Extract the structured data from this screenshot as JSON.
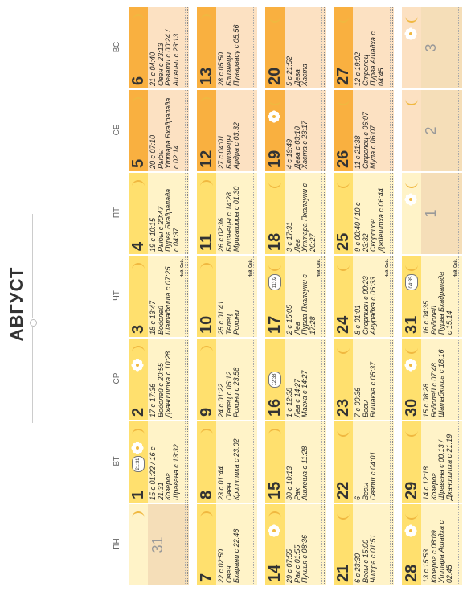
{
  "title": "АВГУСТ",
  "weekdays": [
    "ПН",
    "ВТ",
    "СР",
    "ЧТ",
    "ПТ",
    "СБ",
    "ВС"
  ],
  "colors": {
    "yellow": "#FFE06E",
    "pale": "#FFF3C8",
    "orange": "#F9B040",
    "peach": "#FCE1C2",
    "sand": "#F5DEB8",
    "moon": "#F0B840"
  },
  "weeks": [
    [
      {
        "num": "",
        "grey": "31",
        "band": "pale",
        "bg": "sand",
        "moon": "right"
      },
      {
        "num": "1",
        "band": "yellow",
        "bg": "pale",
        "moon": "right",
        "badge": "21:31",
        "icon": "sun",
        "info": "15 с 01:22 / 16 с\n21:31\nКозерог\nШравана с 13:32"
      },
      {
        "num": "2",
        "band": "yellow",
        "bg": "pale",
        "moon": "right",
        "icon": "sun",
        "info": "17 с 17:36\nВодолей с 20:55\nДхаништха с 10:28"
      },
      {
        "num": "3",
        "band": "yellow",
        "bg": "pale",
        "moon": "right",
        "mark": "Ньй.    Сей.",
        "info": "18 с 13:47\nВодолей\nШатабхиша с 07:25"
      },
      {
        "num": "4",
        "band": "yellow",
        "bg": "pale",
        "moon": "right",
        "info": "19 с 10:15\nРыбы с 20:47\nПурва Бхадрапада\nс 04:37"
      },
      {
        "num": "5",
        "band": "orange",
        "bg": "peach",
        "moon": "right",
        "info": "20 с 07:10\nРыбы\nУттара Бхадрапада\nс 02:14"
      },
      {
        "num": "6",
        "band": "orange",
        "bg": "peach",
        "moon": "right",
        "info": "21 с 04:40\nОвен с 23:13\nРевати с 00:24 /\nАшвини с 23:13"
      }
    ],
    [
      {
        "num": "7",
        "band": "yellow",
        "bg": "pale",
        "moon": "right",
        "info": "22 с 02:50\nОвен\nБхарани с 22:46"
      },
      {
        "num": "8",
        "band": "yellow",
        "bg": "pale",
        "moon": "right",
        "info": "23 с 01:44\nОвен\nКриттика с 23:02"
      },
      {
        "num": "9",
        "band": "yellow",
        "bg": "pale",
        "moon": "right",
        "info": "24 с 01:22\nТелец с 05:12\nРохини с 23:58"
      },
      {
        "num": "10",
        "band": "yellow",
        "bg": "pale",
        "moon": "right",
        "mark": "Ньй.    Сей.",
        "info": "25 с 01:41\nТелец\nРохини"
      },
      {
        "num": "11",
        "band": "yellow",
        "bg": "pale",
        "moon": "right",
        "info": "26 с 02:36\nБлизнецы с 14:28\nМригашира с 01:30"
      },
      {
        "num": "12",
        "band": "orange",
        "bg": "peach",
        "moon": "right",
        "info": "27 с 04:01\nБлизнецы\nАрдра с 03:32"
      },
      {
        "num": "13",
        "band": "orange",
        "bg": "peach",
        "moon": "right",
        "info": "28 с 05:50\nБлизнецы\nПунарвасу с 05:56"
      }
    ],
    [
      {
        "num": "14",
        "band": "yellow",
        "bg": "pale",
        "moon": "right",
        "icon": "sun",
        "info": "29 с 07:55\nРак с 01:55\nПушья с 08:36"
      },
      {
        "num": "15",
        "band": "yellow",
        "bg": "pale",
        "moon": "right",
        "info": "30 с 10:13\nРак\nАшлеша с 11:28"
      },
      {
        "num": "16",
        "band": "yellow",
        "bg": "pale",
        "moon": "none",
        "badge": "12:38",
        "info": "1 с 12:38\nЛев с 14:27\nМагха с 14:27"
      },
      {
        "num": "17",
        "band": "yellow",
        "bg": "pale",
        "moon": "left",
        "badge": "11:02",
        "mark": "Ньй.    Сей.",
        "info": "2 с 15:05\nЛев\nПурва Пхалгуни с\n17:28"
      },
      {
        "num": "18",
        "band": "yellow",
        "bg": "pale",
        "moon": "left",
        "info": "3 с 17:31\nЛев\nУттара Пхалгуни с\n20:27"
      },
      {
        "num": "19",
        "band": "orange",
        "bg": "peach",
        "moon": "left",
        "icon": "sun",
        "info": "4 с 19:49\nДева с 03:10\nХаста с 23:17"
      },
      {
        "num": "20",
        "band": "orange",
        "bg": "peach",
        "moon": "left",
        "info": "5 с 21:52\nДева\nХаста"
      }
    ],
    [
      {
        "num": "21",
        "band": "yellow",
        "bg": "pale",
        "moon": "left",
        "info": "6 с 23:30\nВесы с 15:00\nЧитра с 01:51"
      },
      {
        "num": "22",
        "band": "yellow",
        "bg": "pale",
        "moon": "left",
        "info": "6\nВесы\nСвати с 04:01"
      },
      {
        "num": "23",
        "band": "yellow",
        "bg": "pale",
        "moon": "left",
        "info": "7 с 00:36\nВесы\nВишакха с 05:37"
      },
      {
        "num": "24",
        "band": "yellow",
        "bg": "pale",
        "moon": "left",
        "mark": "Ньй.    Сей.",
        "info": "8 с 01:01\nСкорпион с 00:23\nАнурадха с 06:33"
      },
      {
        "num": "25",
        "band": "yellow",
        "bg": "pale",
        "moon": "left",
        "info": "9 с 00:40 / 10 с\n23:32\nСкорпион\nДжйештха с 06:44"
      },
      {
        "num": "26",
        "band": "orange",
        "bg": "peach",
        "moon": "left",
        "info": "11 с 21:38\nСтрелец с 06:07\nМула с 06:07"
      },
      {
        "num": "27",
        "band": "orange",
        "bg": "peach",
        "moon": "left",
        "info": "12 с 19:02\nСтрелец\nПурва Ашадха с\n04:45"
      }
    ],
    [
      {
        "num": "28",
        "band": "yellow",
        "bg": "pale",
        "moon": "left",
        "icon": "sun",
        "info": "13 с 15:53\nКозерог с 08:09\nУттара Ашадха с\n02:45"
      },
      {
        "num": "29",
        "band": "yellow",
        "bg": "pale",
        "moon": "left",
        "info": "14 с 12:18\nКозерог\nШравана с 00:13 /\nДхаништха с 21:19"
      },
      {
        "num": "30",
        "band": "yellow",
        "bg": "pale",
        "moon": "left",
        "icon": "sun",
        "info": "15 с 08:28\nВодолей с 07:48\nШатабхиша с 18:16"
      },
      {
        "num": "31",
        "band": "yellow",
        "bg": "pale",
        "moon": "left",
        "badge": "04:35",
        "mark": "Ньй.    Сей.",
        "info": "16 с 04:35\nВодолей\nПурва Бхадрапада\nс 15:14"
      },
      {
        "num": "",
        "grey": "1",
        "band": "pale",
        "bg": "sand",
        "moon": "left",
        "icon": "sun"
      },
      {
        "num": "",
        "grey": "2",
        "band": "peach",
        "bg": "sand",
        "moon": "left"
      },
      {
        "num": "",
        "grey": "3",
        "band": "peach",
        "bg": "sand",
        "moon": "left",
        "icon": "sun"
      }
    ]
  ]
}
